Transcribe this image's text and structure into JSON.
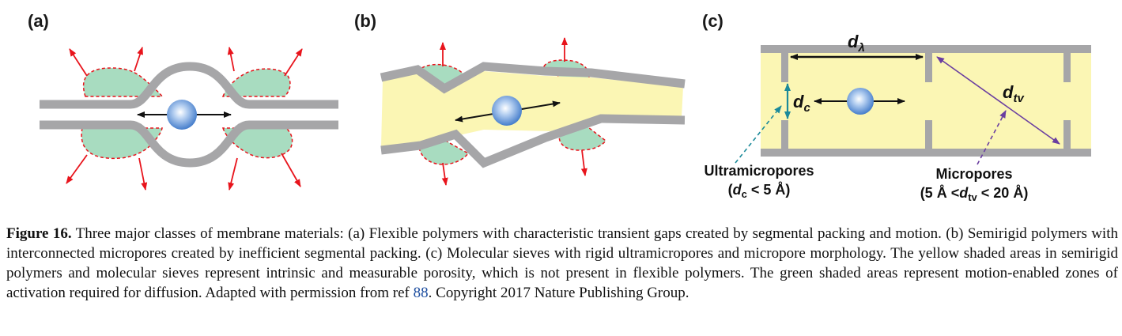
{
  "panels": {
    "a": {
      "label": "(a)"
    },
    "b": {
      "label": "(b)"
    },
    "c": {
      "label": "(c)",
      "d_lambda": {
        "base": "d",
        "sub": "λ"
      },
      "d_c": {
        "base": "d",
        "sub": "c"
      },
      "d_tv": {
        "base": "d",
        "sub": "tv"
      },
      "ultramicropores": {
        "title": "Ultramicropores",
        "cond_pre": "(",
        "cond_base": "d",
        "cond_sub": "c",
        "cond_post": " < 5 Å)"
      },
      "micropores": {
        "title": "Micropores",
        "cond_pre": "(5 Å <",
        "cond_base": "d",
        "cond_sub": "tv",
        "cond_post": " < 20 Å)"
      }
    }
  },
  "caption": {
    "label": "Figure 16.",
    "text_1": " Three major classes of membrane materials: (a) Flexible polymers with characteristic transient gaps created by segmental packing and motion. (b) Semirigid polymers with interconnected micropores created by inefficient segmental packing. (c) Molecular sieves with rigid ultramicropores and micropore morphology. The yellow shaded areas in semirigid polymers and molecular sieves represent intrinsic and measurable porosity, which is not present in flexible polymers. The green shaded areas represent motion-enabled zones of activation required for diffusion. Adapted with permission from ref ",
    "ref": "88",
    "text_2": ". Copyright 2017 Nature Publishing Group."
  },
  "colors": {
    "polymer": "#a6a6a8",
    "green_zone": "#a8dcc0",
    "yellow_zone": "#fbf6b4",
    "red_arrow": "#e8141c",
    "teal_arrow": "#1b8a9a",
    "purple_arrow": "#6a3ea0",
    "ref_link": "#1f4fa0"
  }
}
